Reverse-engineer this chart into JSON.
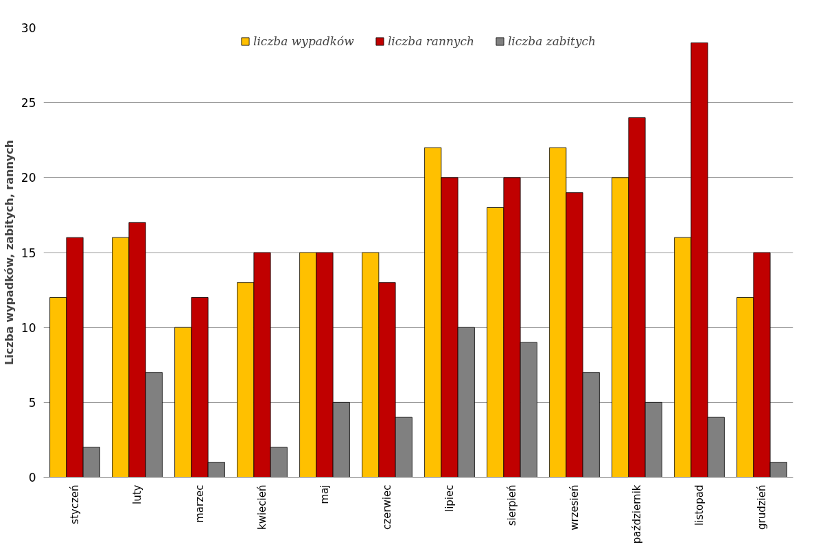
{
  "chart_data": {
    "type": "bar",
    "ylabel": "Liczba wypadków, zabitych, rannych",
    "categories": [
      "styczeń",
      "luty",
      "marzec",
      "kwiecień",
      "maj",
      "czerwiec",
      "lipiec",
      "sierpień",
      "wrzesień",
      "październik",
      "listopad",
      "grudzień"
    ],
    "series": [
      {
        "name": "liczba wypadków",
        "color": "#ffc000",
        "values": [
          12,
          16,
          10,
          13,
          15,
          15,
          22,
          18,
          22,
          20,
          16,
          12
        ]
      },
      {
        "name": "liczba rannych",
        "color": "#c00000",
        "values": [
          16,
          17,
          12,
          15,
          15,
          13,
          20,
          20,
          19,
          24,
          29,
          15
        ]
      },
      {
        "name": "liczba zabitych",
        "color": "#808080",
        "values": [
          2,
          7,
          1,
          2,
          5,
          4,
          10,
          9,
          7,
          5,
          4,
          1
        ]
      }
    ],
    "ylim": [
      0,
      30
    ],
    "yticks": [
      0,
      5,
      10,
      15,
      20,
      25,
      30
    ],
    "grid": "y",
    "legend": "top"
  }
}
